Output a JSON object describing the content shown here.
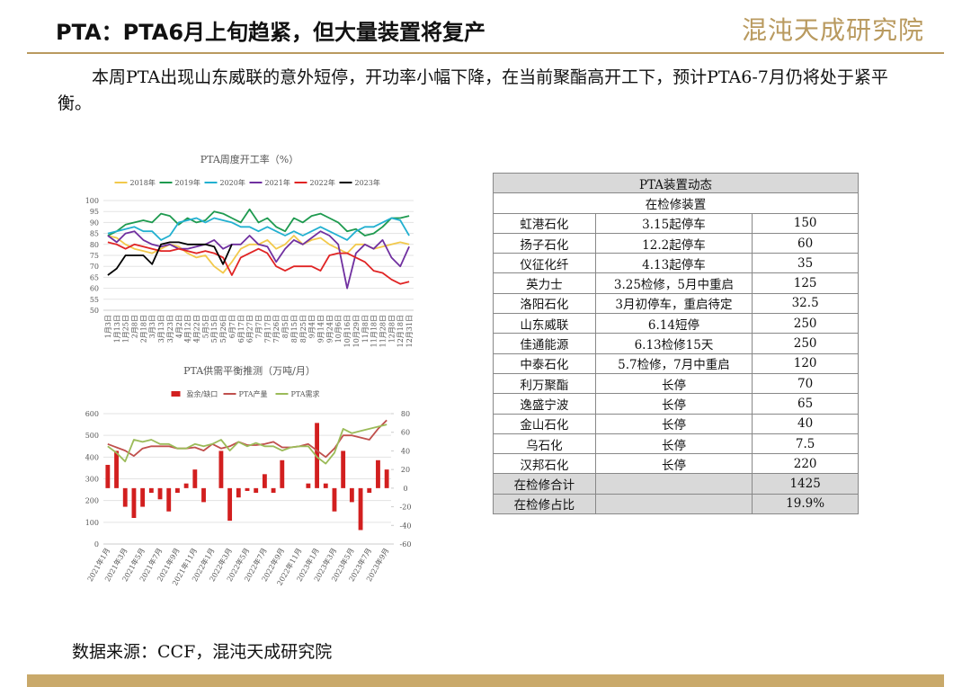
{
  "header": {
    "title": "PTA：PTA6月上旬趋紧，但大量装置将复产",
    "logo": "混沌天成研究院"
  },
  "paragraph": "本周PTA出现山东威联的意外短停，开功率小幅下降，在当前聚酯高开工下，预计PTA6-7月仍将处于紧平衡。",
  "chart_data": [
    {
      "type": "line",
      "title": "PTA周度开工率（%）",
      "categories": [
        "1月3日",
        "1月13日",
        "1月25日",
        "2月8日",
        "2月18日",
        "3月3日",
        "3月13日",
        "3月23日",
        "4月2日",
        "4月12日",
        "4月22日",
        "5月5日",
        "5月15日",
        "5月26日",
        "6月7日",
        "6月17日",
        "6月27日",
        "7月7日",
        "7月17日",
        "7月26日",
        "8月5日",
        "8月15日",
        "8月25日",
        "9月4日",
        "9月14日",
        "9月24日",
        "10月6日",
        "10月16日",
        "10月29日",
        "11月8日",
        "11月18日",
        "11月28日",
        "12月8日",
        "12月18日",
        "12月31日"
      ],
      "series": [
        {
          "name": "2018年",
          "color": "#f2c94c",
          "values": [
            84,
            83,
            80,
            78,
            77,
            76,
            78,
            80,
            79,
            76,
            74,
            75,
            70,
            67,
            72,
            78,
            80,
            80,
            82,
            78,
            80,
            84,
            80,
            82,
            83,
            80,
            78,
            76,
            80,
            80,
            78,
            79,
            80,
            81,
            80
          ]
        },
        {
          "name": "2019年",
          "color": "#1e9a4f",
          "values": [
            84,
            86,
            89,
            90,
            91,
            90,
            94,
            93,
            89,
            92,
            90,
            91,
            95,
            94,
            92,
            90,
            96,
            90,
            92,
            88,
            86,
            92,
            90,
            93,
            94,
            92,
            90,
            86,
            87,
            84,
            85,
            88,
            92,
            92,
            93
          ]
        },
        {
          "name": "2020年",
          "color": "#22b0d0",
          "values": [
            85,
            86,
            87,
            88,
            86,
            86,
            82,
            84,
            90,
            91,
            92,
            90,
            92,
            91,
            90,
            88,
            88,
            86,
            88,
            86,
            84,
            86,
            84,
            86,
            88,
            86,
            84,
            82,
            86,
            88,
            88,
            90,
            92,
            91,
            84
          ]
        },
        {
          "name": "2021年",
          "color": "#7030a0",
          "values": [
            84,
            81,
            85,
            86,
            82,
            80,
            79,
            80,
            78,
            78,
            79,
            80,
            82,
            78,
            80,
            80,
            84,
            80,
            79,
            72,
            78,
            82,
            80,
            83,
            86,
            84,
            80,
            60,
            76,
            80,
            78,
            82,
            74,
            70,
            79
          ]
        },
        {
          "name": "2022年",
          "color": "#e02424",
          "values": [
            81,
            80,
            78,
            80,
            79,
            78,
            77,
            77,
            78,
            77,
            76,
            77,
            76,
            74,
            66,
            74,
            76,
            78,
            76,
            70,
            68,
            70,
            70,
            70,
            68,
            75,
            76,
            76,
            74,
            72,
            68,
            67,
            64,
            62,
            63
          ]
        },
        {
          "name": "2023年",
          "color": "#000000",
          "values": [
            66,
            69,
            75,
            75,
            75,
            71,
            80,
            81,
            81,
            80,
            80,
            80,
            79,
            71,
            80,
            null,
            null,
            null,
            null,
            null,
            null,
            null,
            null,
            null,
            null,
            null,
            null,
            null,
            null,
            null,
            null,
            null,
            null,
            null,
            null
          ]
        }
      ],
      "ylim": [
        50,
        100
      ],
      "yticks": [
        50,
        55,
        60,
        65,
        70,
        75,
        80,
        85,
        90,
        95,
        100
      ],
      "grid": true
    },
    {
      "type": "combo",
      "title": "PTA供需平衡推测（万吨/月）",
      "categories": [
        "2021年1月",
        null,
        "2021年3月",
        null,
        "2021年5月",
        null,
        "2021年7月",
        null,
        "2021年9月",
        null,
        "2021年11月",
        null,
        "2022年1月",
        null,
        "2022年3月",
        null,
        "2022年5月",
        null,
        "2022年7月",
        null,
        "2022年9月",
        null,
        "2022年11月",
        null,
        "2023年1月",
        null,
        "2023年3月",
        null,
        "2023年5月",
        null,
        "2023年7月",
        null,
        "2023年9月"
      ],
      "series": [
        {
          "name": "盈余/缺口",
          "type": "bar",
          "axis": "y2",
          "color": "#d21f1f",
          "values": [
            25,
            40,
            -20,
            -32,
            -20,
            -5,
            -12,
            -25,
            -5,
            5,
            20,
            -15,
            0,
            40,
            -35,
            -10,
            -3,
            -5,
            15,
            -5,
            30,
            0,
            0,
            5,
            70,
            5,
            -25,
            40,
            -15,
            -45,
            -5,
            30,
            20
          ]
        },
        {
          "name": "PTA产量",
          "type": "line",
          "color": "#c0504d",
          "values": [
            460,
            445,
            430,
            405,
            440,
            450,
            450,
            450,
            440,
            440,
            445,
            430,
            460,
            440,
            450,
            470,
            455,
            455,
            460,
            470,
            445,
            445,
            450,
            460,
            430,
            400,
            440,
            500,
            500,
            490,
            480,
            530,
            570
          ]
        },
        {
          "name": "PTA需求",
          "type": "line",
          "color": "#9bbb59",
          "values": [
            450,
            420,
            380,
            480,
            470,
            480,
            460,
            460,
            440,
            440,
            460,
            450,
            460,
            480,
            430,
            470,
            450,
            465,
            450,
            450,
            430,
            445,
            450,
            450,
            400,
            370,
            420,
            530,
            510,
            520,
            530,
            540,
            550
          ]
        }
      ],
      "ylim": [
        0,
        600
      ],
      "yticks": [
        0,
        100,
        200,
        300,
        400,
        500,
        600
      ],
      "y2lim": [
        -60,
        80
      ],
      "y2ticks": [
        -60,
        -40,
        -20,
        0,
        20,
        40,
        60,
        80
      ],
      "grid": true
    }
  ],
  "table": {
    "title": "PTA装置动态",
    "subtitle": "在检修装置",
    "rows": [
      [
        "虹港石化",
        "3.15起停车",
        150
      ],
      [
        "扬子石化",
        "12.2起停车",
        60
      ],
      [
        "仪征化纤",
        "4.13起停车",
        35
      ],
      [
        "英力士",
        "3.25检修，5月中重启",
        125
      ],
      [
        "洛阳石化",
        "3月初停车，重启待定",
        32.5
      ],
      [
        "山东威联",
        "6.14短停",
        250
      ],
      [
        "佳通能源",
        "6.13检修15天",
        250
      ],
      [
        "中泰石化",
        "5.7检修，7月中重启",
        120
      ],
      [
        "利万聚酯",
        "长停",
        70
      ],
      [
        "逸盛宁波",
        "长停",
        65
      ],
      [
        "金山石化",
        "长停",
        40
      ],
      [
        "乌石化",
        "长停",
        7.5
      ],
      [
        "汉邦石化",
        "长停",
        220
      ]
    ],
    "totals": [
      {
        "label": "在检修合计",
        "value": 1425
      },
      {
        "label": "在检修占比",
        "value": "19.9%"
      }
    ]
  },
  "source": "数据来源：CCF，混沌天成研究院"
}
